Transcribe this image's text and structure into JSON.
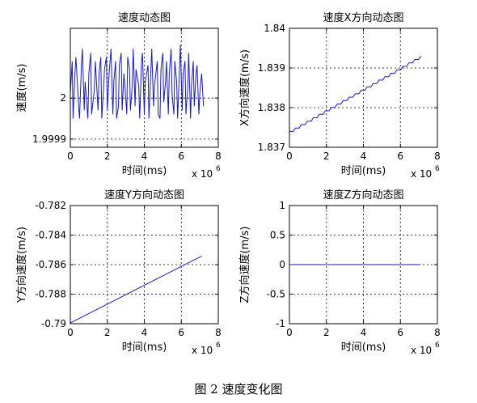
{
  "figure_caption": "图 2  速度变化图",
  "chart_data": [
    {
      "type": "line",
      "title": "速度动态图",
      "xlabel": "时间(ms)",
      "ylabel": "速度(m/s)",
      "x_multiplier": "x 10",
      "x_exponent": "6",
      "xlim": [
        0,
        8
      ],
      "ylim": [
        1.99988,
        2.00017
      ],
      "xticks": [
        "0",
        "2",
        "4",
        "6",
        "8"
      ],
      "yticks": [
        {
          "value": 1.9999,
          "label": "1.9999"
        },
        {
          "value": 2.0,
          "label": "2"
        }
      ],
      "grid": true,
      "series": [
        {
          "color": "#1a1ab8",
          "x": [
            0.0,
            0.1,
            0.15,
            0.25,
            0.3,
            0.45,
            0.5,
            0.6,
            0.65,
            0.75,
            0.8,
            0.95,
            1.0,
            1.1,
            1.15,
            1.3,
            1.35,
            1.5,
            1.55,
            1.65,
            1.7,
            1.8,
            1.85,
            1.95,
            2.0,
            2.1,
            2.2,
            2.3,
            2.35,
            2.45,
            2.5,
            2.6,
            2.65,
            2.75,
            2.8,
            2.9,
            2.95,
            3.05,
            3.1,
            3.2,
            3.25,
            3.35,
            3.4,
            3.5,
            3.55,
            3.7,
            3.75,
            3.85,
            3.9,
            4.0,
            4.05,
            4.2,
            4.25,
            4.35,
            4.4,
            4.5,
            4.55,
            4.7,
            4.75,
            4.85,
            4.9,
            5.0,
            5.05,
            5.15,
            5.2,
            5.3,
            5.35,
            5.45,
            5.5,
            5.6,
            5.65,
            5.75,
            5.8,
            5.9,
            5.95,
            6.05,
            6.1,
            6.2,
            6.25,
            6.35,
            6.4,
            6.5,
            6.55,
            6.65,
            6.7,
            6.8,
            6.85,
            6.95,
            7.0,
            7.1,
            7.2
          ],
          "y": [
            2.00001,
            2.00009,
            1.99995,
            2.00006,
            2.0001,
            1.99998,
            1.99995,
            2.00008,
            2.00012,
            1.99997,
            2.00004,
            1.99995,
            2.00006,
            2.00011,
            1.99996,
            2.00002,
            2.00009,
            1.99997,
            2.00006,
            2.0001,
            1.99995,
            2.00003,
            2.00007,
            2.0001,
            1.99997,
            2.00006,
            2.00012,
            1.99996,
            2.00004,
            2.00009,
            1.99995,
            1.99998,
            2.00008,
            2.00011,
            1.99997,
            2.00006,
            2.00003,
            1.99996,
            2.0001,
            2.00007,
            1.99997,
            2.00003,
            2.00012,
            1.99998,
            2.00007,
            2.00003,
            1.99995,
            2.00009,
            2.00011,
            1.99996,
            2.00004,
            2.00008,
            1.99995,
            2.00006,
            2.00012,
            1.99998,
            2.00003,
            2.00009,
            1.99996,
            1.99995,
            2.00007,
            2.00011,
            1.99999,
            2.00004,
            2.00009,
            1.99996,
            2.00006,
            2.00012,
            2.00001,
            1.99996,
            2.00009,
            2.00004,
            1.99995,
            2.00007,
            2.00013,
            1.99997,
            2.00006,
            2.00009,
            1.99996,
            2.00003,
            2.00011,
            1.99995,
            2.00003,
            2.00009,
            1.99998,
            2.00006,
            2.00008,
            1.99996,
            2.00001,
            2.00006,
            1.99998
          ]
        }
      ]
    },
    {
      "type": "line",
      "title": "速度X方向动态图",
      "xlabel": "时间(ms)",
      "ylabel": "X方向速度(m/s)",
      "x_multiplier": "x 10",
      "x_exponent": "6",
      "xlim": [
        0,
        8
      ],
      "ylim": [
        1.837,
        1.84
      ],
      "xticks": [
        "0",
        "2",
        "4",
        "6",
        "8"
      ],
      "yticks": [
        {
          "value": 1.837,
          "label": "1.837"
        },
        {
          "value": 1.838,
          "label": "1.838"
        },
        {
          "value": 1.839,
          "label": "1.839"
        },
        {
          "value": 1.84,
          "label": "1.84"
        }
      ],
      "grid": true,
      "series": [
        {
          "color": "#1a1ab8",
          "style": "step",
          "x": [
            0.0,
            7.1
          ],
          "y": [
            1.8374,
            1.8393
          ],
          "steps": 22
        }
      ]
    },
    {
      "type": "line",
      "title": "速度Y方向动态图",
      "xlabel": "时间(ms)",
      "ylabel": "Y方向速度(m/s)",
      "x_multiplier": "x 10",
      "x_exponent": "6",
      "xlim": [
        0,
        8
      ],
      "ylim": [
        -0.79,
        -0.782
      ],
      "xticks": [
        "0",
        "2",
        "4",
        "6",
        "8"
      ],
      "yticks": [
        {
          "value": -0.79,
          "label": "-0.79"
        },
        {
          "value": -0.788,
          "label": "-0.788"
        },
        {
          "value": -0.786,
          "label": "-0.786"
        },
        {
          "value": -0.784,
          "label": "-0.784"
        },
        {
          "value": -0.782,
          "label": "-0.782"
        }
      ],
      "grid": true,
      "series": [
        {
          "color": "#1a1ab8",
          "x": [
            0.0,
            7.1
          ],
          "y": [
            -0.78995,
            -0.78542
          ]
        }
      ]
    },
    {
      "type": "line",
      "title": "速度Z方向动态图",
      "xlabel": "时间(ms)",
      "ylabel": "Z方向速度(m/s)",
      "x_multiplier": "x 10",
      "x_exponent": "6",
      "xlim": [
        0,
        8
      ],
      "ylim": [
        -1,
        1
      ],
      "xticks": [
        "0",
        "2",
        "4",
        "6",
        "8"
      ],
      "yticks": [
        {
          "value": -1,
          "label": "-1"
        },
        {
          "value": -0.5,
          "label": "-0.5"
        },
        {
          "value": 0,
          "label": "0"
        },
        {
          "value": 0.5,
          "label": "0.5"
        },
        {
          "value": 1,
          "label": "1"
        }
      ],
      "grid": true,
      "series": [
        {
          "color": "#1a1ab8",
          "x": [
            0.0,
            7.1
          ],
          "y": [
            0,
            0
          ]
        }
      ]
    }
  ]
}
